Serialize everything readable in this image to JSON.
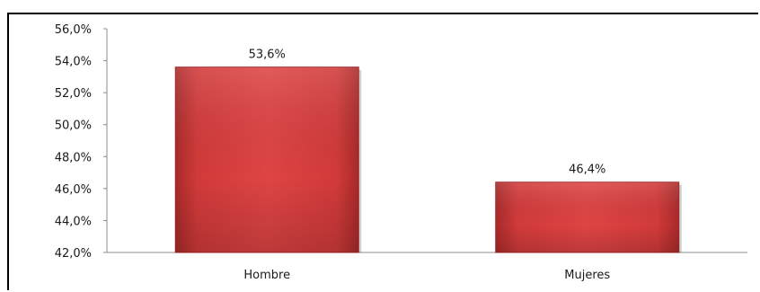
{
  "chart_data": {
    "type": "bar",
    "categories": [
      "Hombre",
      "Mujeres"
    ],
    "values": [
      53.6,
      46.4
    ],
    "data_labels": [
      "53,6%",
      "46,4%"
    ],
    "y_ticks": [
      "42,0%",
      "44,0%",
      "46,0%",
      "48,0%",
      "50,0%",
      "52,0%",
      "54,0%",
      "56,0%"
    ],
    "ylim": [
      42,
      56
    ],
    "title": "",
    "xlabel": "",
    "ylabel": "",
    "grid": false,
    "legend": "none",
    "bar_color": "#d63c3c",
    "bar_color_dark": "#9e2424"
  }
}
